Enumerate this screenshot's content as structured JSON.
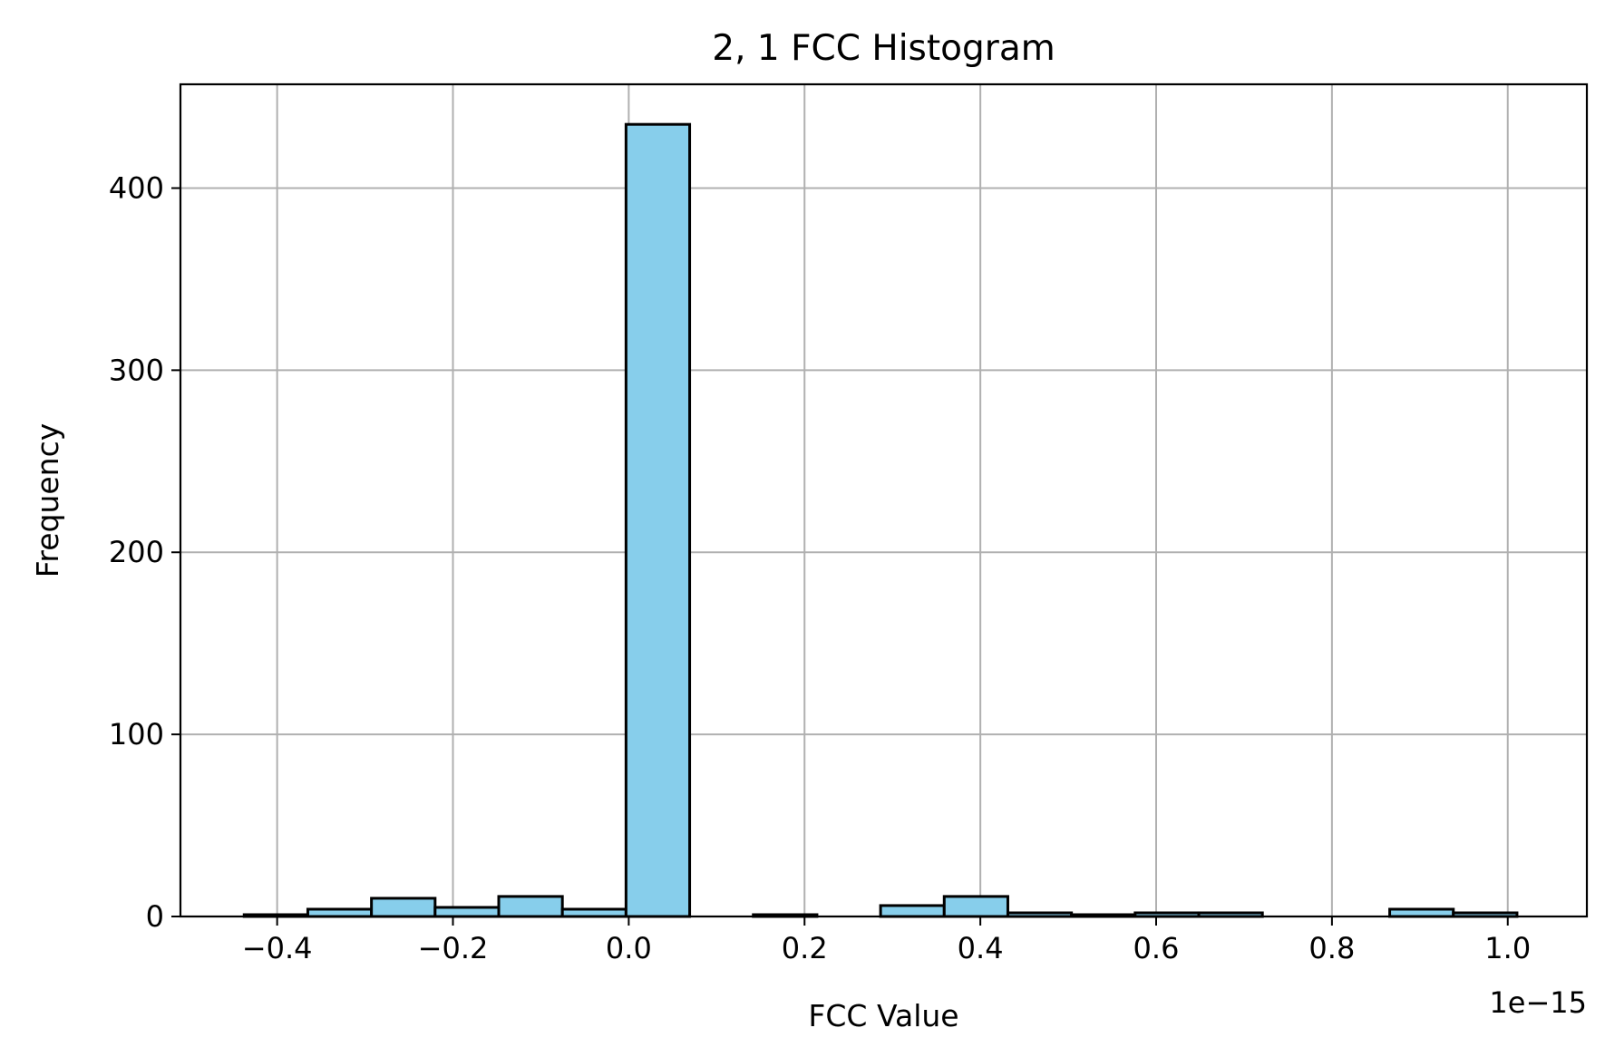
{
  "chart_data": {
    "type": "bar",
    "title": "2, 1 FCC Histogram",
    "xlabel": "FCC Value",
    "ylabel": "Frequency",
    "x_offset_label": "1e−15",
    "x_scale_note": "values in units of 1e-15",
    "xlim": [
      -0.51,
      1.09
    ],
    "ylim": [
      0,
      457
    ],
    "grid": true,
    "colors": {
      "bar_fill": "#87CEEB",
      "bar_edge": "#000000",
      "grid": "#b0b0b0",
      "axes": "#000000"
    },
    "x_ticks": [
      {
        "value": -0.4,
        "label": "−0.4"
      },
      {
        "value": -0.2,
        "label": "−0.2"
      },
      {
        "value": 0.0,
        "label": "0.0"
      },
      {
        "value": 0.2,
        "label": "0.2"
      },
      {
        "value": 0.4,
        "label": "0.4"
      },
      {
        "value": 0.6,
        "label": "0.6"
      },
      {
        "value": 0.8,
        "label": "0.8"
      },
      {
        "value": 1.0,
        "label": "1.0"
      }
    ],
    "y_ticks": [
      {
        "value": 0,
        "label": "0"
      },
      {
        "value": 100,
        "label": "100"
      },
      {
        "value": 200,
        "label": "200"
      },
      {
        "value": 300,
        "label": "300"
      },
      {
        "value": 400,
        "label": "400"
      }
    ],
    "bins": [
      {
        "x0": -0.4375,
        "x1": -0.3651,
        "count": 1
      },
      {
        "x0": -0.3651,
        "x1": -0.2927,
        "count": 4
      },
      {
        "x0": -0.2927,
        "x1": -0.2203,
        "count": 10
      },
      {
        "x0": -0.2203,
        "x1": -0.1479,
        "count": 5
      },
      {
        "x0": -0.1479,
        "x1": -0.0755,
        "count": 11
      },
      {
        "x0": -0.0755,
        "x1": -0.0031,
        "count": 4
      },
      {
        "x0": -0.0031,
        "x1": 0.0693,
        "count": 435
      },
      {
        "x0": 0.0693,
        "x1": 0.1417,
        "count": 0
      },
      {
        "x0": 0.1417,
        "x1": 0.2141,
        "count": 1
      },
      {
        "x0": 0.2141,
        "x1": 0.2865,
        "count": 0
      },
      {
        "x0": 0.2865,
        "x1": 0.3589,
        "count": 6
      },
      {
        "x0": 0.3589,
        "x1": 0.4313,
        "count": 11
      },
      {
        "x0": 0.4313,
        "x1": 0.5037,
        "count": 2
      },
      {
        "x0": 0.5037,
        "x1": 0.5761,
        "count": 1
      },
      {
        "x0": 0.5761,
        "x1": 0.6485,
        "count": 2
      },
      {
        "x0": 0.6485,
        "x1": 0.7209,
        "count": 2
      },
      {
        "x0": 0.7209,
        "x1": 0.7933,
        "count": 0
      },
      {
        "x0": 0.7933,
        "x1": 0.8657,
        "count": 0
      },
      {
        "x0": 0.8657,
        "x1": 0.9381,
        "count": 4
      },
      {
        "x0": 0.9381,
        "x1": 1.0105,
        "count": 2
      }
    ]
  }
}
